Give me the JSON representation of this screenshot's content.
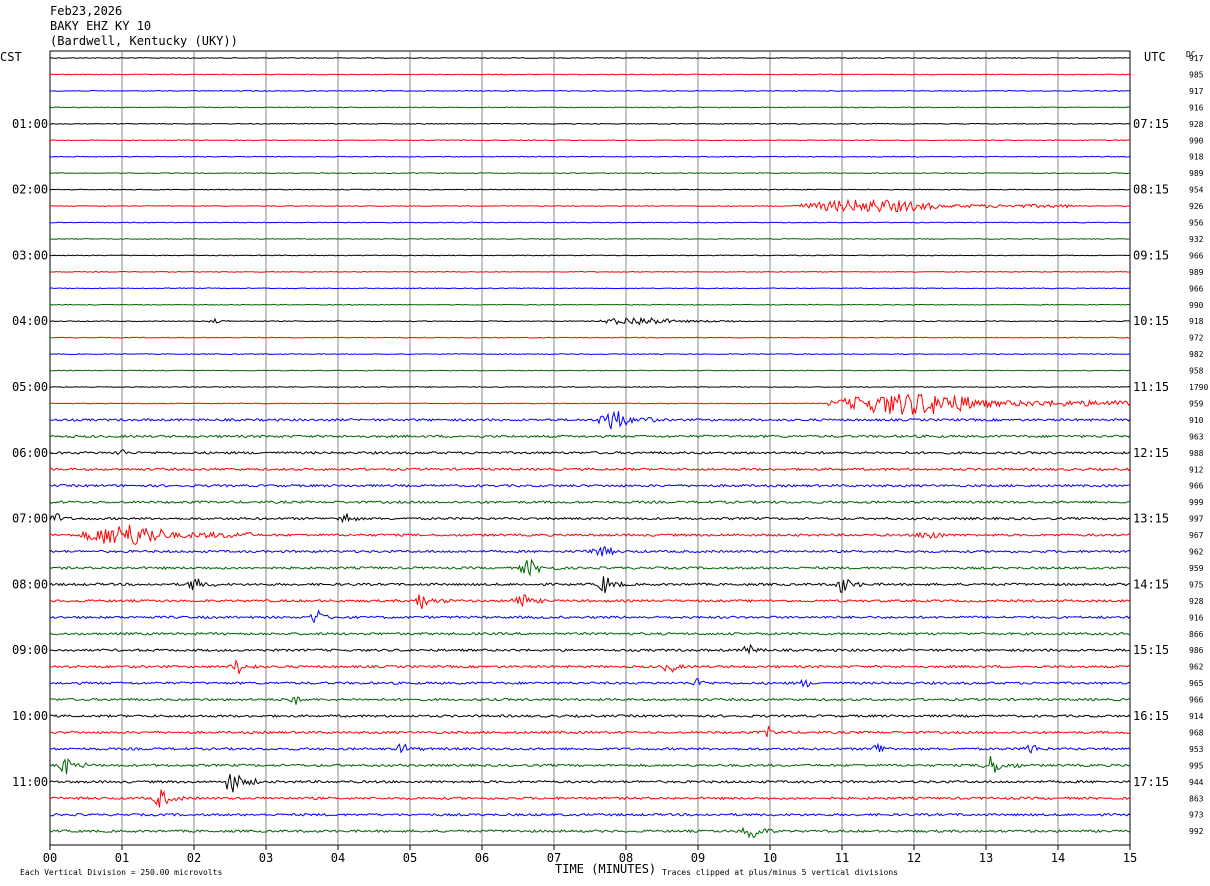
{
  "header": {
    "date": "Feb23,2026",
    "station": "BAKY EHZ KY 10",
    "location": "(Bardwell, Kentucky (UKY))"
  },
  "labels": {
    "left_tz": "CST",
    "right_tz": "UTC",
    "dc": "DC",
    "footer_left": "Each Vertical Division =  250.00 microvolts",
    "footer_right": "Traces clipped at plus/minus 5 vertical divisions"
  },
  "chart_data": {
    "type": "line",
    "title": "",
    "xlabel": "TIME (MINUTES)",
    "ylabel": "",
    "xlim": [
      0,
      15
    ],
    "x_ticks": [
      "00",
      "01",
      "02",
      "03",
      "04",
      "05",
      "06",
      "07",
      "08",
      "09",
      "10",
      "11",
      "12",
      "13",
      "14",
      "15"
    ],
    "grid": "vertical lines at each minute",
    "trace_colors": [
      "#000000",
      "#ff0000",
      "#0000ff",
      "#006400"
    ],
    "cst_hour_labels": [
      "01:00",
      "02:00",
      "03:00",
      "04:00",
      "05:00",
      "06:00",
      "07:00",
      "08:00",
      "09:00",
      "10:00",
      "11:00"
    ],
    "utc_hour_labels": [
      "07:15",
      "08:15",
      "09:15",
      "10:15",
      "11:15",
      "12:15",
      "13:15",
      "14:15",
      "15:15",
      "16:15",
      "17:15"
    ],
    "hour_label_trace_indices": [
      4,
      8,
      12,
      16,
      20,
      24,
      28,
      32,
      36,
      40,
      44
    ],
    "dc_offsets": [
      "917",
      "985",
      "917",
      "916",
      "928",
      "990",
      "918",
      "989",
      "954",
      "926",
      "956",
      "932",
      "966",
      "989",
      "966",
      "990",
      "918",
      "972",
      "982",
      "958",
      "1790",
      "959",
      "910",
      "963",
      "988",
      "912",
      "966",
      "999",
      "997",
      "967",
      "962",
      "959",
      "975",
      "928",
      "916",
      "866",
      "986",
      "962",
      "965",
      "966",
      "914",
      "968",
      "953",
      "995",
      "944",
      "863",
      "973",
      "992"
    ],
    "events": [
      {
        "trace": 21,
        "start_min": 10.8,
        "end_min": 15.0,
        "amplitude": 3.5
      },
      {
        "trace": 9,
        "start_min": 10.3,
        "end_min": 14.2,
        "amplitude": 2.0
      },
      {
        "trace": 16,
        "start_min": 7.6,
        "end_min": 9.6,
        "amplitude": 1.3
      },
      {
        "trace": 22,
        "start_min": 7.6,
        "end_min": 8.4,
        "amplitude": 3.5
      },
      {
        "trace": 29,
        "start_min": 0.4,
        "end_min": 2.8,
        "amplitude": 3.5
      },
      {
        "trace": 43,
        "start_min": 0.1,
        "end_min": 0.5,
        "amplitude": 3.0
      },
      {
        "trace": 43,
        "start_min": 12.9,
        "end_min": 13.5,
        "amplitude": 3.0
      },
      {
        "trace": 44,
        "start_min": 2.4,
        "end_min": 2.9,
        "amplitude": 3.5
      },
      {
        "trace": 45,
        "start_min": 1.4,
        "end_min": 1.9,
        "amplitude": 3.0
      },
      {
        "trace": 47,
        "start_min": 9.6,
        "end_min": 10.1,
        "amplitude": 3.0
      },
      {
        "trace": 24,
        "start_min": 0.9,
        "end_min": 1.2,
        "amplitude": 1.5
      },
      {
        "trace": 28,
        "start_min": 0.0,
        "end_min": 0.3,
        "amplitude": 2.0
      },
      {
        "trace": 28,
        "start_min": 4.0,
        "end_min": 4.3,
        "amplitude": 2.5
      },
      {
        "trace": 31,
        "start_min": 6.5,
        "end_min": 7.1,
        "amplitude": 2.5
      },
      {
        "trace": 32,
        "start_min": 1.9,
        "end_min": 2.3,
        "amplitude": 2.5
      },
      {
        "trace": 32,
        "start_min": 7.6,
        "end_min": 8.0,
        "amplitude": 3.0
      },
      {
        "trace": 32,
        "start_min": 10.9,
        "end_min": 11.3,
        "amplitude": 3.0
      },
      {
        "trace": 33,
        "start_min": 5.0,
        "end_min": 5.6,
        "amplitude": 2.5
      },
      {
        "trace": 33,
        "start_min": 6.4,
        "end_min": 6.9,
        "amplitude": 2.5
      },
      {
        "trace": 34,
        "start_min": 3.6,
        "end_min": 4.0,
        "amplitude": 2.5
      },
      {
        "trace": 36,
        "start_min": 9.6,
        "end_min": 10.0,
        "amplitude": 2.0
      },
      {
        "trace": 37,
        "start_min": 2.5,
        "end_min": 2.9,
        "amplitude": 2.5
      },
      {
        "trace": 37,
        "start_min": 8.5,
        "end_min": 8.9,
        "amplitude": 2.0
      },
      {
        "trace": 38,
        "start_min": 8.9,
        "end_min": 9.3,
        "amplitude": 1.5
      },
      {
        "trace": 38,
        "start_min": 10.4,
        "end_min": 10.7,
        "amplitude": 1.5
      },
      {
        "trace": 39,
        "start_min": 3.3,
        "end_min": 3.6,
        "amplitude": 2.0
      },
      {
        "trace": 41,
        "start_min": 9.9,
        "end_min": 10.2,
        "amplitude": 2.0
      },
      {
        "trace": 42,
        "start_min": 4.8,
        "end_min": 5.2,
        "amplitude": 2.0
      },
      {
        "trace": 42,
        "start_min": 11.4,
        "end_min": 11.8,
        "amplitude": 2.0
      },
      {
        "trace": 42,
        "start_min": 13.5,
        "end_min": 13.9,
        "amplitude": 2.0
      },
      {
        "trace": 30,
        "start_min": 7.4,
        "end_min": 8.3,
        "amplitude": 1.5
      },
      {
        "trace": 29,
        "start_min": 12.0,
        "end_min": 12.8,
        "amplitude": 1.5
      },
      {
        "trace": 16,
        "start_min": 2.2,
        "end_min": 2.5,
        "amplitude": 1.0
      }
    ]
  }
}
